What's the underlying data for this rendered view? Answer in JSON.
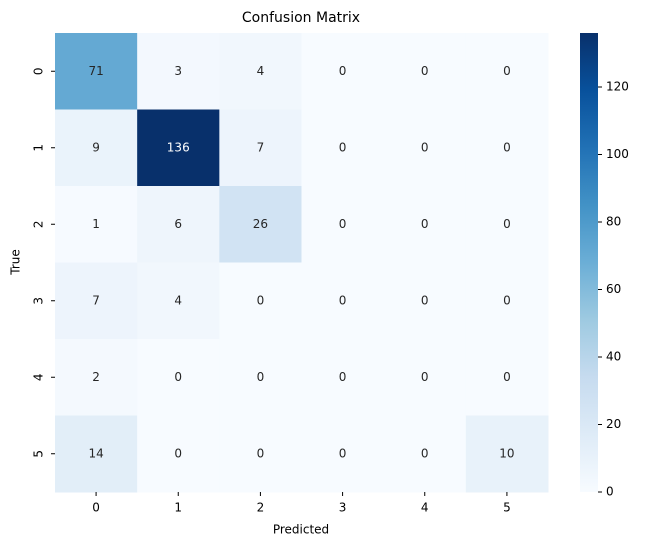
{
  "chart_data": {
    "type": "heatmap",
    "title": "Confusion Matrix",
    "x_label": "Predicted",
    "y_label": "True",
    "x_categories": [
      "0",
      "1",
      "2",
      "3",
      "4",
      "5"
    ],
    "y_categories": [
      "0",
      "1",
      "2",
      "3",
      "4",
      "5"
    ],
    "values": [
      [
        71,
        3,
        4,
        0,
        0,
        0
      ],
      [
        9,
        136,
        7,
        0,
        0,
        0
      ],
      [
        1,
        6,
        26,
        0,
        0,
        0
      ],
      [
        7,
        4,
        0,
        0,
        0,
        0
      ],
      [
        2,
        0,
        0,
        0,
        0,
        0
      ],
      [
        14,
        0,
        0,
        0,
        0,
        10
      ]
    ],
    "colormap": "Blues",
    "zlim": [
      0,
      136
    ],
    "zticks": [
      0,
      20,
      40,
      60,
      80,
      100,
      120
    ]
  }
}
